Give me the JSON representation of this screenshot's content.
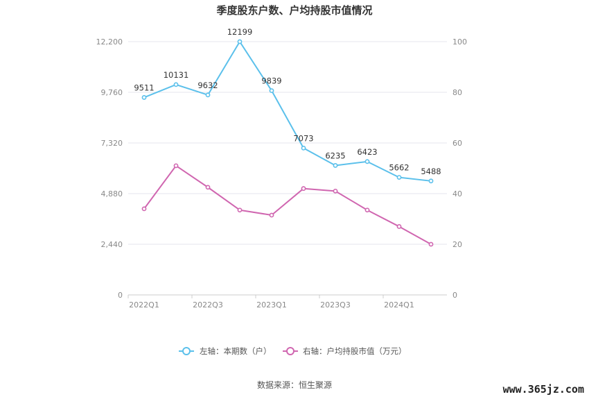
{
  "chart_data": {
    "type": "line",
    "title": "季度股东户数、户均持股市值情况",
    "categories": [
      "2022Q1",
      "2022Q2",
      "2022Q3",
      "2022Q4",
      "2023Q1",
      "2023Q2",
      "2023Q3",
      "2023Q4",
      "2024Q1",
      "2024Q2"
    ],
    "x_tick_labels": [
      "2022Q1",
      "2022Q3",
      "2023Q1",
      "2023Q3",
      "2024Q1"
    ],
    "left_axis": {
      "ticks": [
        "0",
        "2,440",
        "4,880",
        "7,320",
        "9,760",
        "12,200"
      ],
      "ylim": [
        0,
        12200
      ]
    },
    "right_axis": {
      "ticks": [
        "0",
        "20",
        "40",
        "60",
        "80",
        "100"
      ],
      "ylim": [
        0,
        100
      ]
    },
    "series": [
      {
        "name": "左轴：本期数（户）",
        "axis": "left",
        "color": "#5bc0eb",
        "values": [
          9511,
          10131,
          9632,
          12199,
          9839,
          7073,
          6235,
          6423,
          5662,
          5488
        ],
        "labels": [
          "9511",
          "10131",
          "9632",
          "12199",
          "9839",
          "7073",
          "6235",
          "6423",
          "5662",
          "5488"
        ]
      },
      {
        "name": "右轴：户均持股市值（万元）",
        "axis": "right",
        "color": "#d066b0",
        "values": [
          34,
          51,
          42.5,
          33.5,
          31.5,
          42,
          41,
          33.5,
          27,
          20
        ]
      }
    ],
    "grid": true,
    "legend_position": "bottom"
  },
  "source": "数据来源：恒生聚源",
  "watermark": "www.365jz.com"
}
